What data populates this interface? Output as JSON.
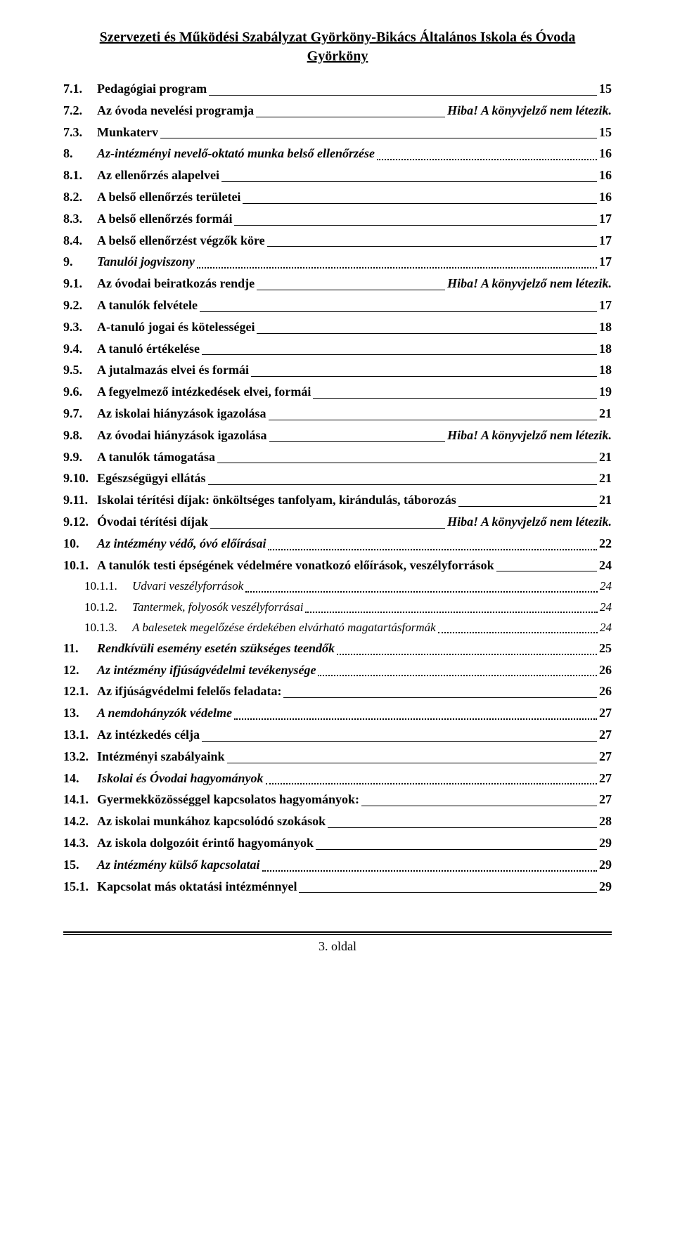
{
  "title_line1": "Szervezeti és Működési Szabályzat Györköny-Bikács Általános Iskola és Óvoda",
  "title_line2": "Györköny",
  "error_text": "Hiba! A könyvjelző nem létezik.",
  "footer": "3. oldal",
  "entries": [
    {
      "num": "7.1.",
      "title": "Pedagógiai program",
      "page": "15",
      "bold": true,
      "leader": "solid",
      "indent": 1
    },
    {
      "num": "7.2.",
      "title": "Az óvoda nevelési programja",
      "err": true,
      "bold": true,
      "leader": "solid",
      "indent": 1
    },
    {
      "num": "7.3.",
      "title": "Munkaterv",
      "page": "15",
      "bold": true,
      "leader": "solid",
      "indent": 1
    },
    {
      "num": "8.",
      "title": "Az-intézményi nevelő-oktató munka belső ellenőrzése",
      "page": "16",
      "bold": true,
      "italic": true,
      "leader": "dotted",
      "indent": 0
    },
    {
      "num": "8.1.",
      "title": "Az ellenőrzés alapelvei",
      "page": "16",
      "bold": true,
      "leader": "solid",
      "indent": 1
    },
    {
      "num": "8.2.",
      "title": "A belső ellenőrzés területei",
      "page": "16",
      "bold": true,
      "leader": "solid",
      "indent": 1
    },
    {
      "num": "8.3.",
      "title": "A belső ellenőrzés formái",
      "page": "17",
      "bold": true,
      "leader": "solid",
      "indent": 1
    },
    {
      "num": "8.4.",
      "title": "A belső ellenőrzést végzők köre",
      "page": "17",
      "bold": true,
      "leader": "solid",
      "indent": 1
    },
    {
      "num": "9.",
      "title": "Tanulói jogviszony",
      "page": "17",
      "bold": true,
      "italic": true,
      "leader": "dotted",
      "indent": 0
    },
    {
      "num": "9.1.",
      "title": "Az óvodai beiratkozás rendje",
      "err": true,
      "bold": true,
      "leader": "solid",
      "indent": 1
    },
    {
      "num": "9.2.",
      "title": "A tanulók felvétele",
      "page": "17",
      "bold": true,
      "leader": "solid",
      "indent": 1
    },
    {
      "num": "9.3.",
      "title": "A-tanuló jogai és kötelességei",
      "page": "18",
      "bold": true,
      "leader": "solid",
      "indent": 1
    },
    {
      "num": "9.4.",
      "title": "A tanuló értékelése",
      "page": "18",
      "bold": true,
      "leader": "solid",
      "indent": 1
    },
    {
      "num": "9.5.",
      "title": "A jutalmazás elvei és formái",
      "page": "18",
      "bold": true,
      "leader": "solid",
      "indent": 1
    },
    {
      "num": "9.6.",
      "title": "A fegyelmező intézkedések elvei, formái",
      "page": "19",
      "bold": true,
      "leader": "solid",
      "indent": 1
    },
    {
      "num": "9.7.",
      "title": "Az iskolai hiányzások igazolása",
      "page": "21",
      "bold": true,
      "leader": "solid",
      "indent": 1
    },
    {
      "num": "9.8.",
      "title": "Az óvodai hiányzások igazolása",
      "err": true,
      "bold": true,
      "leader": "solid",
      "indent": 1
    },
    {
      "num": "9.9.",
      "title": "A tanulók támogatása",
      "page": "21",
      "bold": true,
      "leader": "solid",
      "indent": 1
    },
    {
      "num": "9.10.",
      "title": "Egészségügyi ellátás",
      "page": "21",
      "bold": true,
      "leader": "solid",
      "indent": 1
    },
    {
      "num": "9.11.",
      "title": "Iskolai térítési díjak: önköltséges tanfolyam, kirándulás, táborozás",
      "page": "21",
      "bold": true,
      "leader": "solid",
      "indent": 1
    },
    {
      "num": "9.12.",
      "title": "Óvodai térítési díjak",
      "err": true,
      "bold": true,
      "leader": "solid",
      "indent": 1
    },
    {
      "num": "10.",
      "title": "Az intézmény védő, óvó előírásai",
      "page": "22",
      "bold": true,
      "italic": true,
      "leader": "dotted",
      "indent": 0
    },
    {
      "num": "10.1.",
      "title": "A tanulók testi épségének védelmére vonatkozó előírások, veszélyforrások",
      "page": "24",
      "bold": true,
      "leader": "solid",
      "indent": 1
    },
    {
      "num": "10.1.1.",
      "title": "Udvari veszélyforrások",
      "page": "24",
      "bold": false,
      "leader": "dotted",
      "indent": 2,
      "sub": true
    },
    {
      "num": "10.1.2.",
      "title": "Tantermek, folyosók veszélyforrásai",
      "page": "24",
      "bold": false,
      "leader": "dotted",
      "indent": 2,
      "sub": true
    },
    {
      "num": "10.1.3.",
      "title": "A balesetek megelőzése érdekében elvárható magatartásformák",
      "page": "24",
      "bold": false,
      "leader": "dotted",
      "indent": 2,
      "sub": true
    },
    {
      "num": "11.",
      "title": "Rendkívüli esemény esetén szükséges teendők",
      "page": "25",
      "bold": true,
      "italic": true,
      "leader": "dotted",
      "indent": 0
    },
    {
      "num": "12.",
      "title": "Az intézmény ifjúságvédelmi tevékenysége",
      "page": "26",
      "bold": true,
      "italic": true,
      "leader": "dotted",
      "indent": 0
    },
    {
      "num": "12.1.",
      "title": "Az ifjúságvédelmi felelős feladata:",
      "page": "26",
      "bold": true,
      "leader": "solid",
      "indent": 1
    },
    {
      "num": "13.",
      "title": "A nemdohányzók védelme",
      "page": "27",
      "bold": true,
      "italic": true,
      "leader": "dotted",
      "indent": 0
    },
    {
      "num": "13.1.",
      "title": "Az intézkedés célja",
      "page": "27",
      "bold": true,
      "leader": "solid",
      "indent": 1
    },
    {
      "num": "13.2.",
      "title": "Intézményi szabályaink",
      "page": "27",
      "bold": true,
      "leader": "solid",
      "indent": 1
    },
    {
      "num": "14.",
      "title": "Iskolai és Óvodai hagyományok",
      "page": "27",
      "bold": true,
      "italic": true,
      "leader": "dotted",
      "indent": 0
    },
    {
      "num": "14.1.",
      "title": "Gyermekközösséggel kapcsolatos hagyományok:",
      "page": "27",
      "bold": true,
      "leader": "solid",
      "indent": 1
    },
    {
      "num": "14.2.",
      "title": "Az iskolai munkához kapcsolódó szokások",
      "page": "28",
      "bold": true,
      "leader": "solid",
      "indent": 1
    },
    {
      "num": "14.3.",
      "title": "Az iskola dolgozóit érintő hagyományok",
      "page": "29",
      "bold": true,
      "leader": "solid",
      "indent": 1
    },
    {
      "num": "15.",
      "title": "Az intézmény külső kapcsolatai",
      "page": "29",
      "bold": true,
      "italic": true,
      "leader": "dotted",
      "indent": 0
    },
    {
      "num": "15.1.",
      "title": "Kapcsolat más oktatási intézménnyel",
      "page": "29",
      "bold": true,
      "leader": "solid",
      "indent": 1
    }
  ]
}
